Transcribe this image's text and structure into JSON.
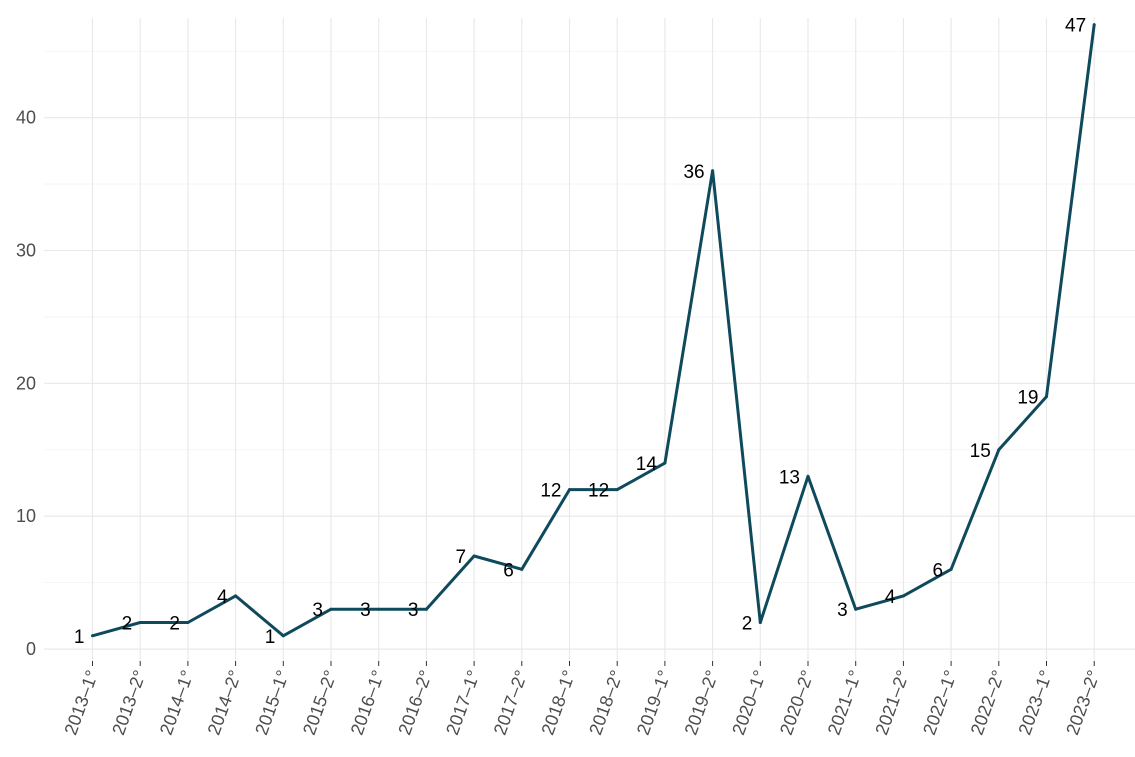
{
  "colors": {
    "line": "#0f4a5c",
    "grid": "#e8e8e8"
  },
  "chart_data": {
    "type": "line",
    "title": "",
    "xlabel": "",
    "ylabel": "",
    "categories": [
      "2013–1°",
      "2013–2°",
      "2014–1°",
      "2014–2°",
      "2015–1°",
      "2015–2°",
      "2016–1°",
      "2016–2°",
      "2017–1°",
      "2017–2°",
      "2018–1°",
      "2018–2°",
      "2019–1°",
      "2019–2°",
      "2020–1°",
      "2020–2°",
      "2021–1°",
      "2021–2°",
      "2022–1°",
      "2022–2°",
      "2023–1°",
      "2023–2°"
    ],
    "series": [
      {
        "values": [
          1,
          2,
          2,
          4,
          1,
          3,
          3,
          3,
          7,
          6,
          12,
          12,
          14,
          36,
          2,
          13,
          3,
          4,
          6,
          15,
          19,
          47
        ]
      }
    ],
    "yticks": [
      0,
      10,
      20,
      30,
      40
    ],
    "ylim": [
      -0.9,
      47.5
    ],
    "grid": true,
    "legend": "none"
  }
}
